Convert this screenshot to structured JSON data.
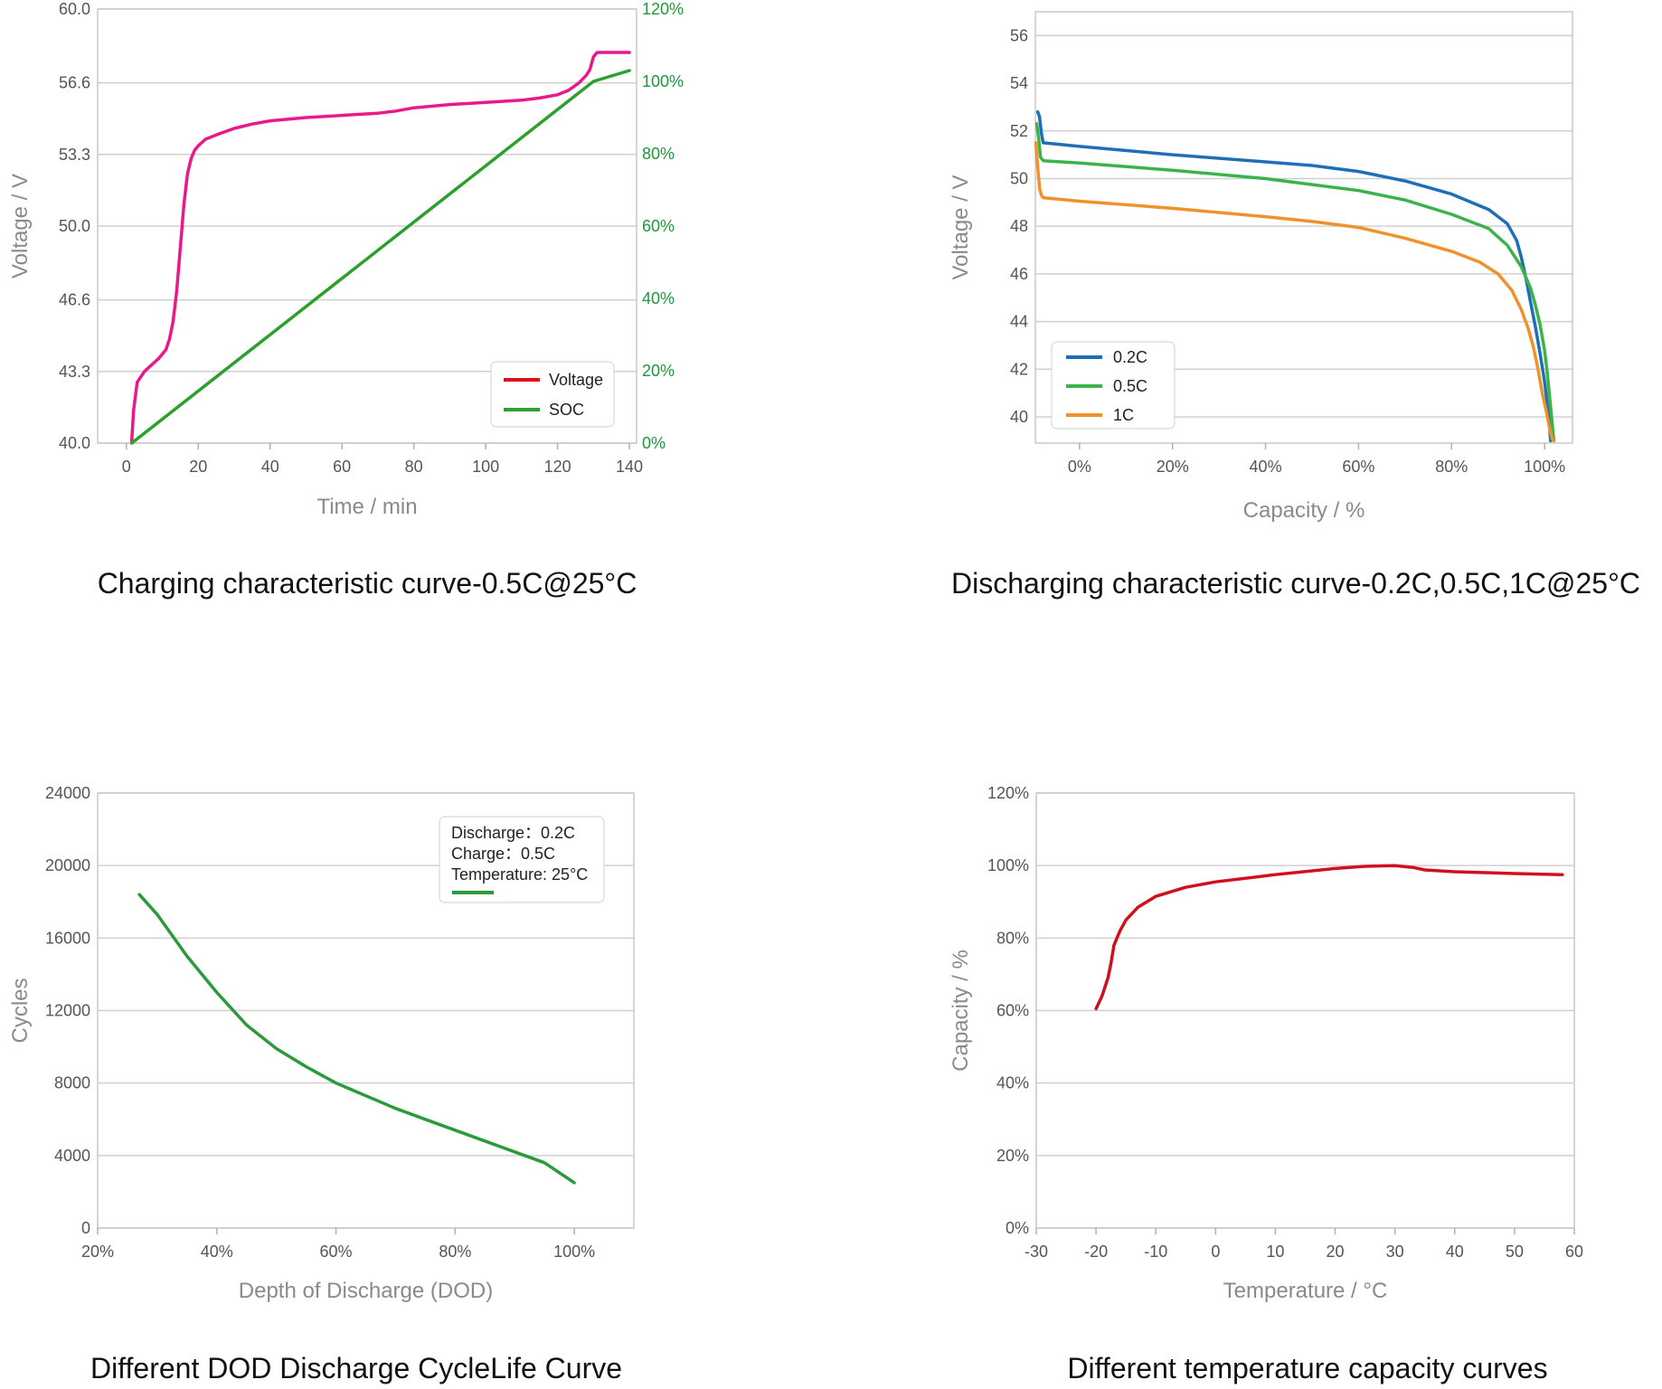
{
  "chart_data": [
    {
      "id": "charging",
      "type": "line",
      "caption": "Charging characteristic curve-0.5C@25°C",
      "xlabel": "Time / min",
      "ylabel": "Voltage / V",
      "xlim": [
        -8,
        142
      ],
      "ylim": [
        40.0,
        60.0
      ],
      "y2lim": [
        0,
        120
      ],
      "x_ticks": [
        0,
        20,
        40,
        60,
        80,
        100,
        120,
        140
      ],
      "x_tick_labels": [
        "0",
        "20",
        "40",
        "60",
        "80",
        "100",
        "120",
        "140"
      ],
      "y_ticks": [
        40.0,
        43.3,
        46.6,
        50.0,
        53.3,
        56.6,
        60.0
      ],
      "y_tick_labels": [
        "40.0",
        "43.3",
        "46.6",
        "50.0",
        "53.3",
        "56.6",
        "60.0"
      ],
      "y2_ticks": [
        0,
        20,
        40,
        60,
        80,
        100,
        120
      ],
      "y2_tick_labels": [
        "0%",
        "20%",
        "40%",
        "60%",
        "80%",
        "100%",
        "120%"
      ],
      "grid": true,
      "legend_position": "bottom-right",
      "series": [
        {
          "name": "Voltage",
          "axis": "y",
          "color": "#e8198b",
          "legend_color": "#e0101a",
          "x": [
            1.5,
            2,
            3,
            5,
            7,
            9,
            11,
            12,
            13,
            14,
            15,
            16,
            17,
            18,
            19,
            20,
            22,
            25,
            30,
            35,
            40,
            50,
            60,
            70,
            75,
            80,
            90,
            100,
            110,
            115,
            120,
            123,
            126,
            128,
            129,
            130,
            131,
            133,
            140
          ],
          "y": [
            40.1,
            41.5,
            42.8,
            43.3,
            43.6,
            43.9,
            44.3,
            44.8,
            45.6,
            47.0,
            49.0,
            51.0,
            52.4,
            53.1,
            53.5,
            53.7,
            54.0,
            54.2,
            54.5,
            54.7,
            54.85,
            55.0,
            55.1,
            55.2,
            55.3,
            55.45,
            55.6,
            55.7,
            55.8,
            55.9,
            56.05,
            56.25,
            56.6,
            56.95,
            57.2,
            57.8,
            58.0,
            58.0,
            58.0
          ]
        },
        {
          "name": "SOC",
          "axis": "y2",
          "color": "#2ba02b",
          "legend_color": "#2ba02b",
          "x": [
            1.5,
            130,
            140
          ],
          "y": [
            0,
            100,
            103
          ]
        }
      ]
    },
    {
      "id": "discharging",
      "type": "line",
      "caption": "Discharging characteristic curve-0.2C,0.5C,1C@25°C",
      "xlabel": "Capacity / %",
      "ylabel": "Voltage / V",
      "xlim": [
        -9.5,
        106
      ],
      "ylim": [
        38.9,
        57
      ],
      "x_ticks": [
        0,
        20,
        40,
        60,
        80,
        100
      ],
      "x_tick_labels": [
        "0%",
        "20%",
        "40%",
        "60%",
        "80%",
        "100%"
      ],
      "y_ticks": [
        40,
        42,
        44,
        46,
        48,
        50,
        52,
        54,
        56
      ],
      "y_tick_labels": [
        "40",
        "42",
        "44",
        "46",
        "48",
        "50",
        "52",
        "54",
        "56"
      ],
      "grid": true,
      "legend_position": "bottom-left",
      "series": [
        {
          "name": "0.2C",
          "color": "#1f6fb8",
          "x": [
            -9,
            -8.6,
            -8.2,
            -7.8,
            0,
            20,
            40,
            50,
            60,
            70,
            80,
            88,
            92,
            94,
            95,
            96,
            97,
            98,
            99,
            100,
            100.6,
            101,
            101.3
          ],
          "y": [
            52.8,
            52.6,
            51.9,
            51.5,
            51.35,
            51.0,
            50.7,
            50.55,
            50.3,
            49.9,
            49.35,
            48.7,
            48.1,
            47.4,
            46.7,
            45.8,
            44.8,
            43.8,
            42.7,
            41.5,
            40.5,
            39.8,
            39.0
          ]
        },
        {
          "name": "0.5C",
          "color": "#3cb34a",
          "x": [
            -9.2,
            -8.8,
            -8.4,
            -7.8,
            0,
            20,
            40,
            50,
            60,
            70,
            80,
            88,
            92,
            95,
            97,
            98,
            99,
            100,
            100.5,
            101,
            101.6,
            102
          ],
          "y": [
            52.3,
            51.7,
            50.9,
            50.75,
            50.65,
            50.35,
            50.0,
            49.75,
            49.5,
            49.1,
            48.5,
            47.9,
            47.2,
            46.3,
            45.4,
            44.7,
            43.9,
            42.8,
            42.0,
            41.0,
            39.8,
            39.0
          ]
        },
        {
          "name": "1C",
          "color": "#f0922c",
          "x": [
            -9.4,
            -9.0,
            -8.6,
            -8.2,
            -7.8,
            0,
            20,
            40,
            50,
            60,
            70,
            80,
            86,
            90,
            93,
            95,
            96.5,
            97.5,
            98.5,
            99.5,
            100.3,
            101,
            101.6,
            102
          ],
          "y": [
            51.5,
            50.5,
            49.6,
            49.3,
            49.2,
            49.05,
            48.75,
            48.4,
            48.2,
            47.95,
            47.5,
            46.95,
            46.5,
            46.0,
            45.3,
            44.5,
            43.7,
            43.0,
            42.1,
            41.0,
            40.3,
            39.6,
            39.1,
            39.0
          ]
        }
      ]
    },
    {
      "id": "dod",
      "type": "line",
      "caption": "Different DOD Discharge CycleLife Curve",
      "xlabel": "Depth of Discharge (DOD)",
      "ylabel": "Cycles",
      "xlim": [
        20,
        110
      ],
      "ylim": [
        0,
        24000
      ],
      "x_ticks": [
        20,
        40,
        60,
        80,
        100
      ],
      "x_tick_labels": [
        "20%",
        "40%",
        "60%",
        "80%",
        "100%"
      ],
      "y_ticks": [
        0,
        4000,
        8000,
        12000,
        16000,
        20000,
        24000
      ],
      "y_tick_labels": [
        "0",
        "4000",
        "8000",
        "12000",
        "16000",
        "20000",
        "24000"
      ],
      "grid": true,
      "legend_position": "top-right",
      "legend_lines": [
        "Discharge：0.2C",
        "Charge：0.5C",
        "Temperature: 25°C"
      ],
      "series": [
        {
          "name": "",
          "color": "#2a9a3a",
          "x": [
            27,
            30,
            35,
            40,
            45,
            50,
            55,
            60,
            65,
            70,
            75,
            80,
            85,
            90,
            95,
            100
          ],
          "y": [
            18400,
            17300,
            15000,
            13000,
            11200,
            9900,
            8900,
            8000,
            7300,
            6600,
            6000,
            5400,
            4800,
            4200,
            3600,
            2500
          ]
        }
      ]
    },
    {
      "id": "temperature",
      "type": "line",
      "caption": "Different temperature capacity curves",
      "xlabel": "Temperature / °C",
      "ylabel": "Capacity / %",
      "xlim": [
        -30,
        60
      ],
      "ylim": [
        0,
        120
      ],
      "x_ticks": [
        -30,
        -20,
        -10,
        0,
        10,
        20,
        30,
        40,
        50,
        60
      ],
      "x_tick_labels": [
        "-30",
        "-20",
        "-10",
        "0",
        "10",
        "20",
        "30",
        "40",
        "50",
        "60"
      ],
      "y_ticks": [
        0,
        20,
        40,
        60,
        80,
        100,
        120
      ],
      "y_tick_labels": [
        "0%",
        "20%",
        "40%",
        "60%",
        "80%",
        "100%",
        "120%"
      ],
      "grid": true,
      "series": [
        {
          "name": "",
          "color": "#d0101f",
          "x": [
            -20,
            -19,
            -18,
            -17.5,
            -17,
            -16,
            -15,
            -13,
            -10,
            -5,
            0,
            10,
            20,
            25,
            30,
            33,
            35,
            40,
            50,
            58
          ],
          "y": [
            60.5,
            64,
            69,
            73,
            78,
            82,
            85,
            88.5,
            91.5,
            94,
            95.5,
            97.5,
            99.2,
            99.8,
            100,
            99.5,
            98.8,
            98.3,
            97.8,
            97.5
          ]
        }
      ]
    }
  ]
}
